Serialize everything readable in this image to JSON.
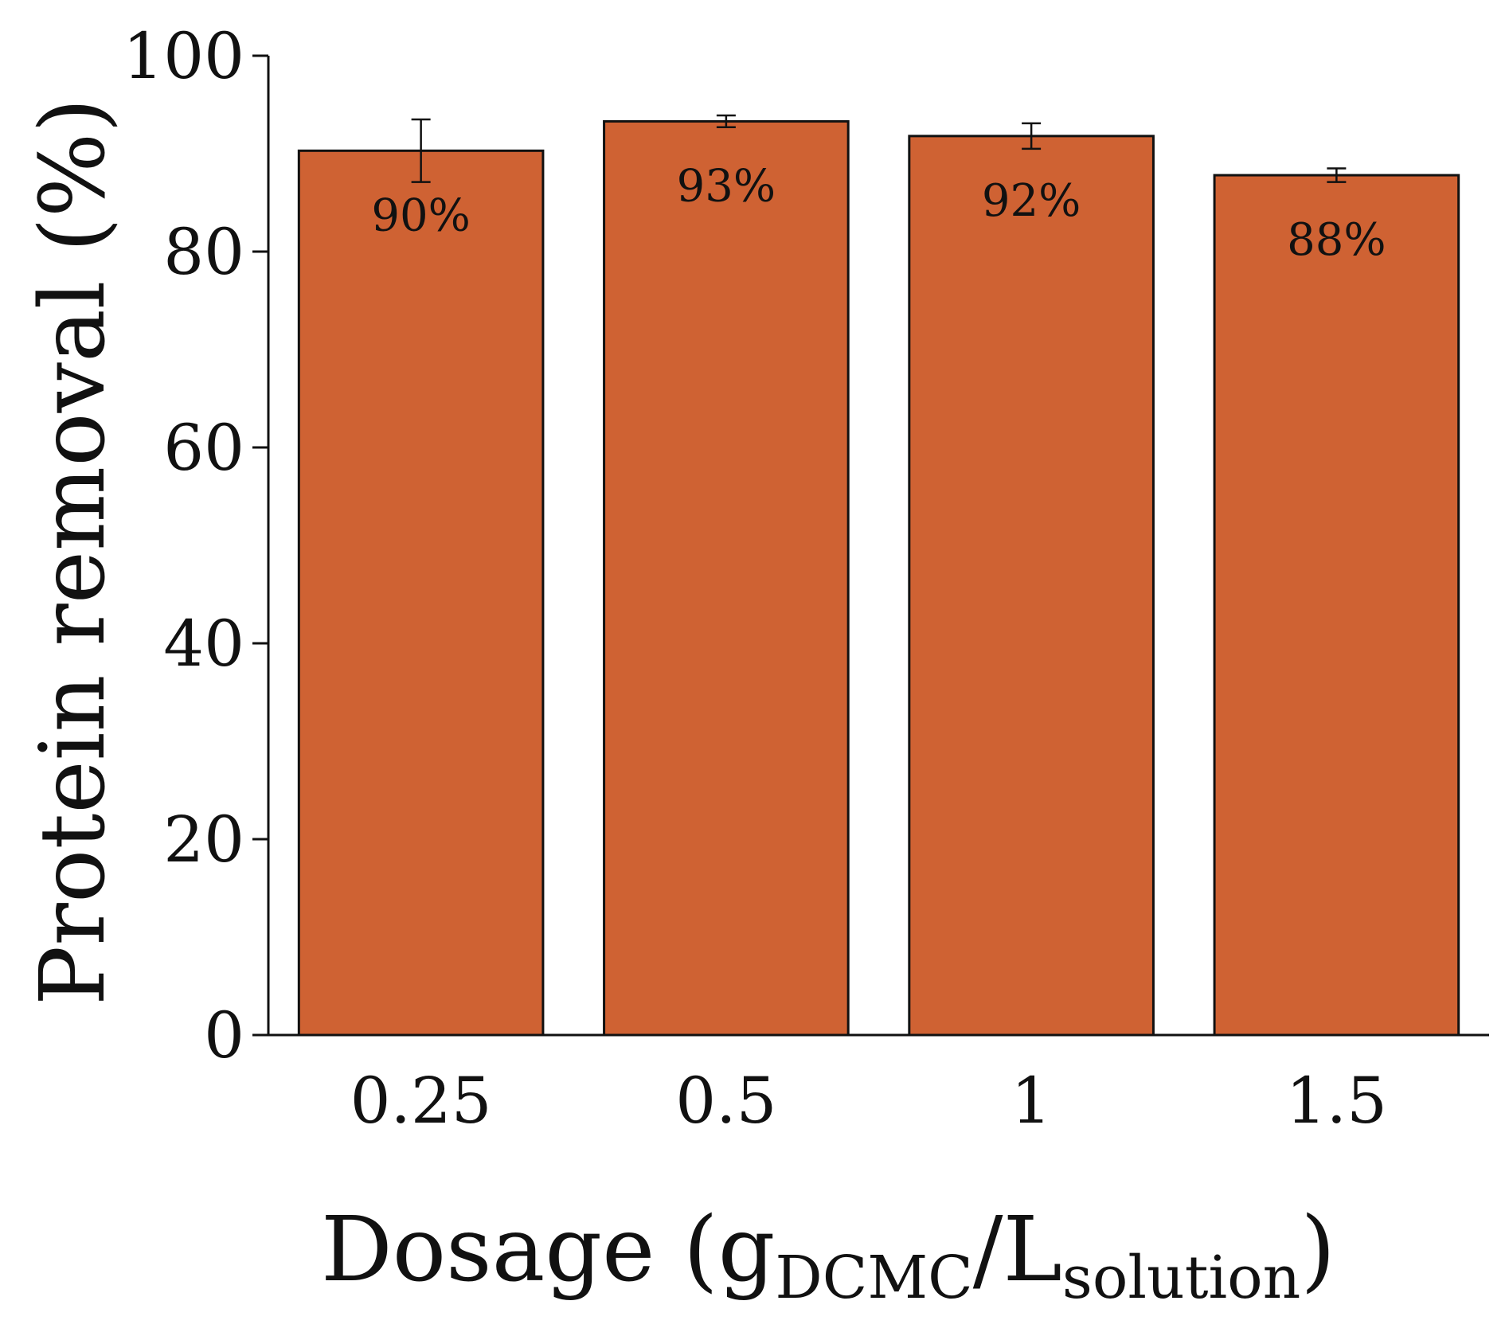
{
  "chart_data": {
    "type": "bar",
    "title": "",
    "xlabel": {
      "main": "Dosage (g",
      "sub1": "DCMC",
      "mid": "/L",
      "sub2": "solution",
      "end": ")"
    },
    "ylabel": "Protein removal (%)",
    "categories": [
      "0.25",
      "0.5",
      "1",
      "1.5"
    ],
    "values": [
      90.3,
      93.3,
      91.8,
      87.8
    ],
    "errors": [
      3.2,
      0.6,
      1.3,
      0.7
    ],
    "data_labels": [
      "90%",
      "93%",
      "92%",
      "88%"
    ],
    "ylim": [
      0,
      100
    ],
    "yticks": [
      0,
      20,
      40,
      60,
      80,
      100
    ],
    "ytick_labels": [
      "0",
      "20",
      "40",
      "60",
      "80",
      "100"
    ],
    "grid": false,
    "legend": "none"
  },
  "colors": {
    "bar_fill": "#cf6233",
    "bar_edge": "#111111",
    "axis": "#111111"
  }
}
